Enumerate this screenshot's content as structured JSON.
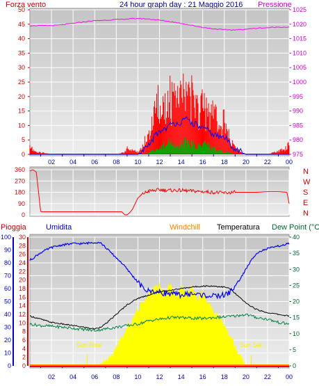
{
  "header": {
    "left_label": "Forza vento",
    "title": "24 hour graph day : 21 Maggio 2016",
    "right_label": "Pressione"
  },
  "middle_header": {
    "pioggia": "Pioggia",
    "umidita": "Umidita",
    "windchill": "Windchill",
    "temperatura": "Temperatura",
    "dewpoint": "Dew Point (°C"
  },
  "annotations": {
    "sunrise": "Sun Rise",
    "sunset": "Sun Set"
  },
  "colors": {
    "wind": "#ff0000",
    "pressure": "#ff00ff",
    "avg_wind": "#0000ff",
    "gust_fill": "#00aa00",
    "direction": "#ff0000",
    "humidity": "#0000ff",
    "temperature": "#000000",
    "dewpoint": "#008040",
    "solar": "#ffff00",
    "rain_axis": "#ff0000",
    "windchill": "#ff8000",
    "grid": "#ffffff",
    "bg_top": "#cfcfcf",
    "bg_bottom": "#ebebeb"
  },
  "chart_data": [
    {
      "type": "line",
      "title": "24 hour graph day : 21 Maggio 2016",
      "x_tick_labels": [
        "02",
        "04",
        "06",
        "08",
        "10",
        "12",
        "14",
        "16",
        "18",
        "20",
        "22",
        "00"
      ],
      "xlim_hours": [
        0,
        24
      ],
      "left_axis": {
        "label": "Forza vento",
        "ylim": [
          0,
          50
        ],
        "ticks": [
          "0",
          "5",
          "10",
          "15",
          "20",
          "25",
          "30",
          "35",
          "40",
          "45",
          "50"
        ]
      },
      "right_axis": {
        "label": "Pressione",
        "ylim": [
          975,
          1025
        ],
        "ticks": [
          "975",
          "980",
          "985",
          "990",
          "995",
          "1000",
          "1005",
          "1010",
          "1015",
          "1020",
          "1025"
        ]
      },
      "series": [
        {
          "name": "Pressione",
          "axis": "right",
          "x": [
            0,
            1,
            2,
            3,
            4,
            5,
            6,
            7,
            8,
            9,
            10,
            11,
            12,
            13,
            14,
            15,
            16,
            17,
            18,
            19,
            20,
            21,
            22,
            23,
            24
          ],
          "values": [
            1019.5,
            1019.5,
            1019.5,
            1019.8,
            1020.3,
            1020.8,
            1021.2,
            1021.4,
            1021.6,
            1021.8,
            1022,
            1021.8,
            1021.4,
            1020.9,
            1020.3,
            1019.6,
            1018.9,
            1018.4,
            1018.1,
            1018,
            1018.3,
            1018.6,
            1018.8,
            1019,
            1019
          ]
        },
        {
          "name": "Forza vento",
          "axis": "left",
          "x": [
            0,
            0.3,
            0.6,
            1,
            2,
            4,
            6,
            8,
            8.7,
            9,
            9.5,
            10,
            10.5,
            11,
            11.5,
            12,
            12.5,
            13,
            13.5,
            14,
            14.5,
            15,
            15.5,
            16,
            16.5,
            17,
            17.5,
            18,
            18.5,
            19,
            19.5,
            20,
            22,
            23.7,
            24
          ],
          "values": [
            5,
            2,
            1,
            1,
            0,
            0,
            0,
            0,
            1,
            3,
            2,
            1,
            5,
            10,
            20,
            26,
            22,
            28,
            24,
            30,
            25,
            28,
            22,
            26,
            18,
            20,
            14,
            16,
            8,
            4,
            1,
            0,
            0,
            3,
            6
          ]
        },
        {
          "name": "vento medio",
          "axis": "left",
          "x": [
            0,
            10,
            10.5,
            11,
            11.5,
            12,
            12.5,
            13,
            13.5,
            14,
            14.5,
            15,
            15.5,
            16,
            16.5,
            17,
            17.5,
            18,
            18.5,
            19,
            19.5,
            20,
            24
          ],
          "values": [
            0,
            0,
            1,
            3,
            6,
            8,
            9,
            10,
            11,
            11,
            12,
            11,
            10,
            9,
            8,
            7,
            6,
            6,
            4,
            2,
            1,
            0,
            0
          ]
        },
        {
          "name": "raffiche",
          "axis": "left",
          "x": [
            0,
            10.8,
            11,
            11.5,
            12,
            12.5,
            13,
            13.5,
            14,
            14.5,
            15,
            15.5,
            16,
            16.5,
            17,
            17.5,
            18,
            18.5,
            18.8,
            24
          ],
          "values": [
            0,
            0,
            1,
            2,
            3,
            5,
            6,
            4,
            5,
            7,
            5,
            4,
            6,
            4,
            3,
            2,
            1,
            1,
            0,
            0
          ]
        }
      ]
    },
    {
      "type": "line",
      "x_tick_labels": [],
      "ylim": [
        0,
        360
      ],
      "y_ticks": [
        "0",
        "90",
        "180",
        "270",
        "360"
      ],
      "direction_labels": [
        "N",
        "W",
        "S",
        "E",
        "N"
      ],
      "series": [
        {
          "name": "Direzione vento",
          "x": [
            0,
            0.3,
            0.6,
            1,
            2,
            4,
            6,
            8,
            8.5,
            8.8,
            9,
            9.2,
            9.5,
            10,
            10.5,
            11,
            12,
            13,
            14,
            15,
            16,
            17,
            18,
            19,
            20,
            21,
            22,
            23,
            23.8,
            24
          ],
          "values": [
            350,
            360,
            340,
            25,
            25,
            25,
            25,
            25,
            25,
            0,
            0,
            15,
            45,
            135,
            170,
            190,
            200,
            195,
            195,
            190,
            185,
            180,
            175,
            180,
            180,
            180,
            185,
            185,
            180,
            90
          ]
        }
      ]
    },
    {
      "type": "line",
      "x_tick_labels": [
        "02",
        "04",
        "06",
        "08",
        "10",
        "12",
        "14",
        "16",
        "18",
        "20",
        "22",
        "00"
      ],
      "xlim_hours": [
        0,
        24
      ],
      "left_axes": [
        {
          "label": "Umidita",
          "ylim": [
            0,
            100
          ],
          "ticks": [
            "0",
            "10",
            "20",
            "30",
            "40",
            "50",
            "60",
            "70",
            "80",
            "90",
            "100"
          ]
        },
        {
          "label": "Pioggia",
          "ylim": [
            0,
            30
          ],
          "ticks": [
            "0",
            "2",
            "4",
            "6",
            "8",
            "10",
            "12",
            "14",
            "16",
            "18",
            "20",
            "22",
            "24",
            "26",
            "28",
            "30"
          ]
        }
      ],
      "right_axis": {
        "label": "Dew Point (°C",
        "ylim": [
          0,
          40
        ],
        "ticks": [
          "0",
          "5",
          "10",
          "15",
          "20",
          "25",
          "30",
          "35",
          "40"
        ]
      },
      "series": [
        {
          "name": "Umidita",
          "axis": "Umidita",
          "x": [
            0,
            0.5,
            1,
            1.5,
            2,
            3,
            4,
            5,
            6,
            6.5,
            7,
            7.5,
            8,
            8.5,
            9,
            9.5,
            10,
            10.5,
            11,
            11.5,
            12,
            13,
            14,
            15,
            16,
            17,
            18,
            18.5,
            19,
            19.5,
            20,
            20.5,
            21,
            22,
            23,
            24
          ],
          "values": [
            82,
            85,
            88,
            90,
            92,
            94,
            95,
            95,
            96,
            96,
            92,
            88,
            84,
            80,
            75,
            70,
            65,
            60,
            58,
            58,
            57,
            56,
            55,
            56,
            55,
            54,
            55,
            57,
            62,
            68,
            75,
            82,
            88,
            91,
            93,
            95
          ]
        },
        {
          "name": "Temperatura",
          "axis": "right",
          "x": [
            0,
            1,
            2,
            3,
            4,
            5,
            6,
            6.5,
            7,
            7.5,
            8,
            8.5,
            9,
            9.5,
            10,
            10.5,
            11,
            11.5,
            12,
            13,
            14,
            15,
            16,
            17,
            18,
            18.5,
            19,
            19.5,
            20,
            20.5,
            21,
            22,
            23,
            24
          ],
          "values": [
            15.5,
            14.5,
            13.5,
            13,
            12.5,
            12,
            11.5,
            12,
            13,
            14.5,
            16,
            17.5,
            19,
            20,
            21,
            21.5,
            22,
            22.5,
            23,
            23.5,
            24,
            24.5,
            24.8,
            24.8,
            24.5,
            24,
            22.5,
            21,
            19.5,
            18.5,
            17.5,
            16.5,
            16,
            15.5
          ]
        },
        {
          "name": "Dew Point (°C",
          "axis": "right",
          "x": [
            0,
            1,
            2,
            3,
            4,
            5,
            6,
            7,
            8,
            9,
            10,
            11,
            12,
            13,
            14,
            15,
            16,
            17,
            18,
            19,
            20,
            21,
            22,
            23,
            24
          ],
          "values": [
            13,
            12.5,
            12.3,
            12,
            11.7,
            11.3,
            11,
            11.5,
            12,
            12.5,
            13,
            14,
            14.5,
            15,
            15,
            14.8,
            14.7,
            15,
            15.2,
            15.5,
            16,
            15,
            14.5,
            13.5,
            13
          ]
        },
        {
          "name": "Solar",
          "axis": "right",
          "x": [
            0,
            5,
            5.5,
            6,
            6.5,
            7,
            7.5,
            8,
            8.5,
            9,
            9.5,
            10,
            10.5,
            11,
            11.5,
            12,
            12.5,
            13,
            13.5,
            14,
            14.5,
            15,
            15.5,
            16,
            16.5,
            17,
            17.5,
            18,
            18.5,
            19,
            19.5,
            20,
            24
          ],
          "values": [
            0,
            0,
            0,
            0,
            0.5,
            1.5,
            3,
            5.5,
            8.5,
            11.5,
            14.5,
            17.5,
            20,
            22.5,
            24.5,
            25.5,
            21.5,
            26.5,
            20.5,
            25.5,
            22.5,
            25,
            21,
            23,
            19.5,
            17.5,
            15,
            12.5,
            9.5,
            6,
            2.5,
            0,
            0
          ]
        },
        {
          "name": "Pioggia",
          "axis": "Pioggia",
          "x": [
            0,
            24
          ],
          "values": [
            0,
            0
          ]
        }
      ]
    }
  ]
}
